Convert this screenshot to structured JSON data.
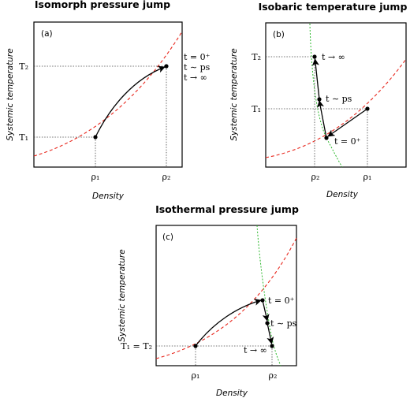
{
  "panels": {
    "a": {
      "title": "Isomorph pressure jump",
      "tag": "(a)",
      "xlabel": "Density",
      "ylabel": "Systemic temperature",
      "y_ticks": [
        "T₂",
        "T₁"
      ],
      "x_ticks": [
        "ρ₁",
        "ρ₂"
      ],
      "annotations": [
        "t = 0⁺",
        "t ∼ ps",
        "t → ∞"
      ]
    },
    "b": {
      "title": "Isobaric temperature jump",
      "tag": "(b)",
      "xlabel": "Density",
      "ylabel": "Systemic temperature",
      "y_ticks": [
        "T₂",
        "T₁"
      ],
      "x_ticks": [
        "ρ₂",
        "ρ₁"
      ],
      "annotations": [
        "t → ∞",
        "t ∼ ps",
        "t = 0⁺"
      ]
    },
    "c": {
      "title": "Isothermal pressure jump",
      "tag": "(c)",
      "xlabel": "Density",
      "ylabel": "Systemic temperature",
      "y_ticks": [
        "T₁ = T₂"
      ],
      "x_ticks": [
        "ρ₁",
        "ρ₂"
      ],
      "annotations": [
        "t = 0⁺",
        "t ∼ ps",
        "t → ∞"
      ]
    }
  },
  "colors": {
    "isomorph_curve": "#e8261c",
    "isobar_curve": "#2eb82e"
  }
}
